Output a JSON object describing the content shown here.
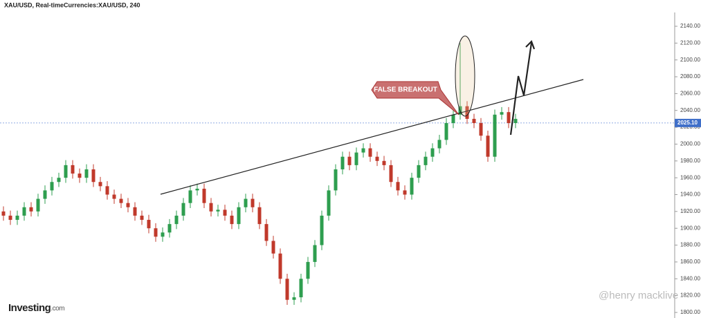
{
  "chart_data": {
    "type": "candlestick",
    "title": "XAU/USD, Real-timeCurrencies:XAU/USD, 240",
    "open": [
      1920,
      1915,
      1910,
      1915,
      1925,
      1920,
      1935,
      1945,
      1955,
      1960,
      1975,
      1965,
      1960,
      1970,
      1955,
      1950,
      1940,
      1935,
      1930,
      1925,
      1915,
      1910,
      1900,
      1890,
      1895,
      1905,
      1915,
      1930,
      1945,
      1947,
      1930,
      1920,
      1922,
      1915,
      1905,
      1925,
      1935,
      1925,
      1905,
      1885,
      1870,
      1840,
      1815,
      1818,
      1840,
      1860,
      1880,
      1915,
      1945,
      1970,
      1985,
      1975,
      1990,
      1995,
      1985,
      1980,
      1975,
      1955,
      1945,
      1940,
      1960,
      1975,
      1985,
      1995,
      2005,
      2025,
      2035,
      2045,
      2030,
      2025,
      2010,
      1985,
      2035,
      2038,
      2025
    ],
    "high": [
      1926,
      1921,
      1921,
      1931,
      1931,
      1941,
      1951,
      1961,
      1966,
      1981,
      1981,
      1971,
      1976,
      1976,
      1961,
      1956,
      1946,
      1941,
      1936,
      1931,
      1921,
      1916,
      1906,
      1901,
      1911,
      1921,
      1936,
      1951,
      1953,
      1953,
      1936,
      1928,
      1928,
      1921,
      1931,
      1941,
      1941,
      1931,
      1911,
      1891,
      1876,
      1846,
      1824,
      1846,
      1866,
      1886,
      1921,
      1951,
      1976,
      1991,
      1991,
      1996,
      2001,
      2001,
      1991,
      1986,
      1981,
      1961,
      1951,
      1966,
      1981,
      1991,
      2001,
      2011,
      2031,
      2041,
      2120,
      2051,
      2036,
      2031,
      2016,
      2041,
      2044,
      2044,
      2036
    ],
    "low": [
      1909,
      1904,
      1904,
      1909,
      1914,
      1914,
      1929,
      1939,
      1949,
      1954,
      1959,
      1954,
      1954,
      1949,
      1944,
      1934,
      1929,
      1924,
      1919,
      1909,
      1904,
      1894,
      1884,
      1884,
      1889,
      1899,
      1909,
      1924,
      1939,
      1924,
      1914,
      1914,
      1909,
      1899,
      1899,
      1919,
      1919,
      1899,
      1879,
      1864,
      1834,
      1809,
      1809,
      1812,
      1834,
      1854,
      1874,
      1909,
      1939,
      1964,
      1969,
      1969,
      1984,
      1979,
      1974,
      1969,
      1949,
      1939,
      1934,
      1934,
      1954,
      1969,
      1979,
      1989,
      1999,
      2019,
      2029,
      2024,
      2019,
      2004,
      1979,
      1979,
      2029,
      2019,
      2019
    ],
    "close": [
      1915,
      1910,
      1915,
      1925,
      1920,
      1935,
      1945,
      1955,
      1960,
      1975,
      1965,
      1960,
      1970,
      1955,
      1950,
      1940,
      1935,
      1930,
      1925,
      1915,
      1910,
      1900,
      1890,
      1895,
      1905,
      1915,
      1930,
      1945,
      1947,
      1930,
      1920,
      1922,
      1915,
      1905,
      1925,
      1935,
      1925,
      1905,
      1885,
      1870,
      1840,
      1815,
      1818,
      1840,
      1860,
      1880,
      1915,
      1945,
      1970,
      1985,
      1975,
      1990,
      1995,
      1985,
      1980,
      1975,
      1955,
      1945,
      1940,
      1960,
      1975,
      1985,
      1995,
      2005,
      2025,
      2035,
      2045,
      2030,
      2025,
      2010,
      1985,
      2035,
      2038,
      2025,
      2030
    ],
    "up_color": "#2e9e4f",
    "down_color": "#c0392b",
    "ylim": [
      1793.4,
      2171.2
    ],
    "yticks": [
      {
        "value": 1800,
        "label": "1800.00"
      },
      {
        "value": 1820,
        "label": "1820.00"
      },
      {
        "value": 1840,
        "label": "1840.00"
      },
      {
        "value": 1860,
        "label": "1860.00"
      },
      {
        "value": 1880,
        "label": "1880.00"
      },
      {
        "value": 1900,
        "label": "1900.00"
      },
      {
        "value": 1920,
        "label": "1920.00"
      },
      {
        "value": 1940,
        "label": "1940.00"
      },
      {
        "value": 1960,
        "label": "1960.00"
      },
      {
        "value": 1980,
        "label": "1980.00"
      },
      {
        "value": 2000,
        "label": "2000.00"
      },
      {
        "value": 2020,
        "label": "2020.00"
      },
      {
        "value": 2040,
        "label": "2040.00"
      },
      {
        "value": 2060,
        "label": "2060.00"
      },
      {
        "value": 2080,
        "label": "2080.00"
      },
      {
        "value": 2100,
        "label": "2100.00"
      },
      {
        "value": 2120,
        "label": "2120.00"
      },
      {
        "value": 2140,
        "label": "2140.00"
      }
    ],
    "price_line": {
      "value": 2025.1,
      "label": "2025.10"
    },
    "annotation": "FALSE BREAKOUT",
    "logo": {
      "main": "Investing",
      "suffix": ".com"
    },
    "watermark": "@henry macklive"
  }
}
